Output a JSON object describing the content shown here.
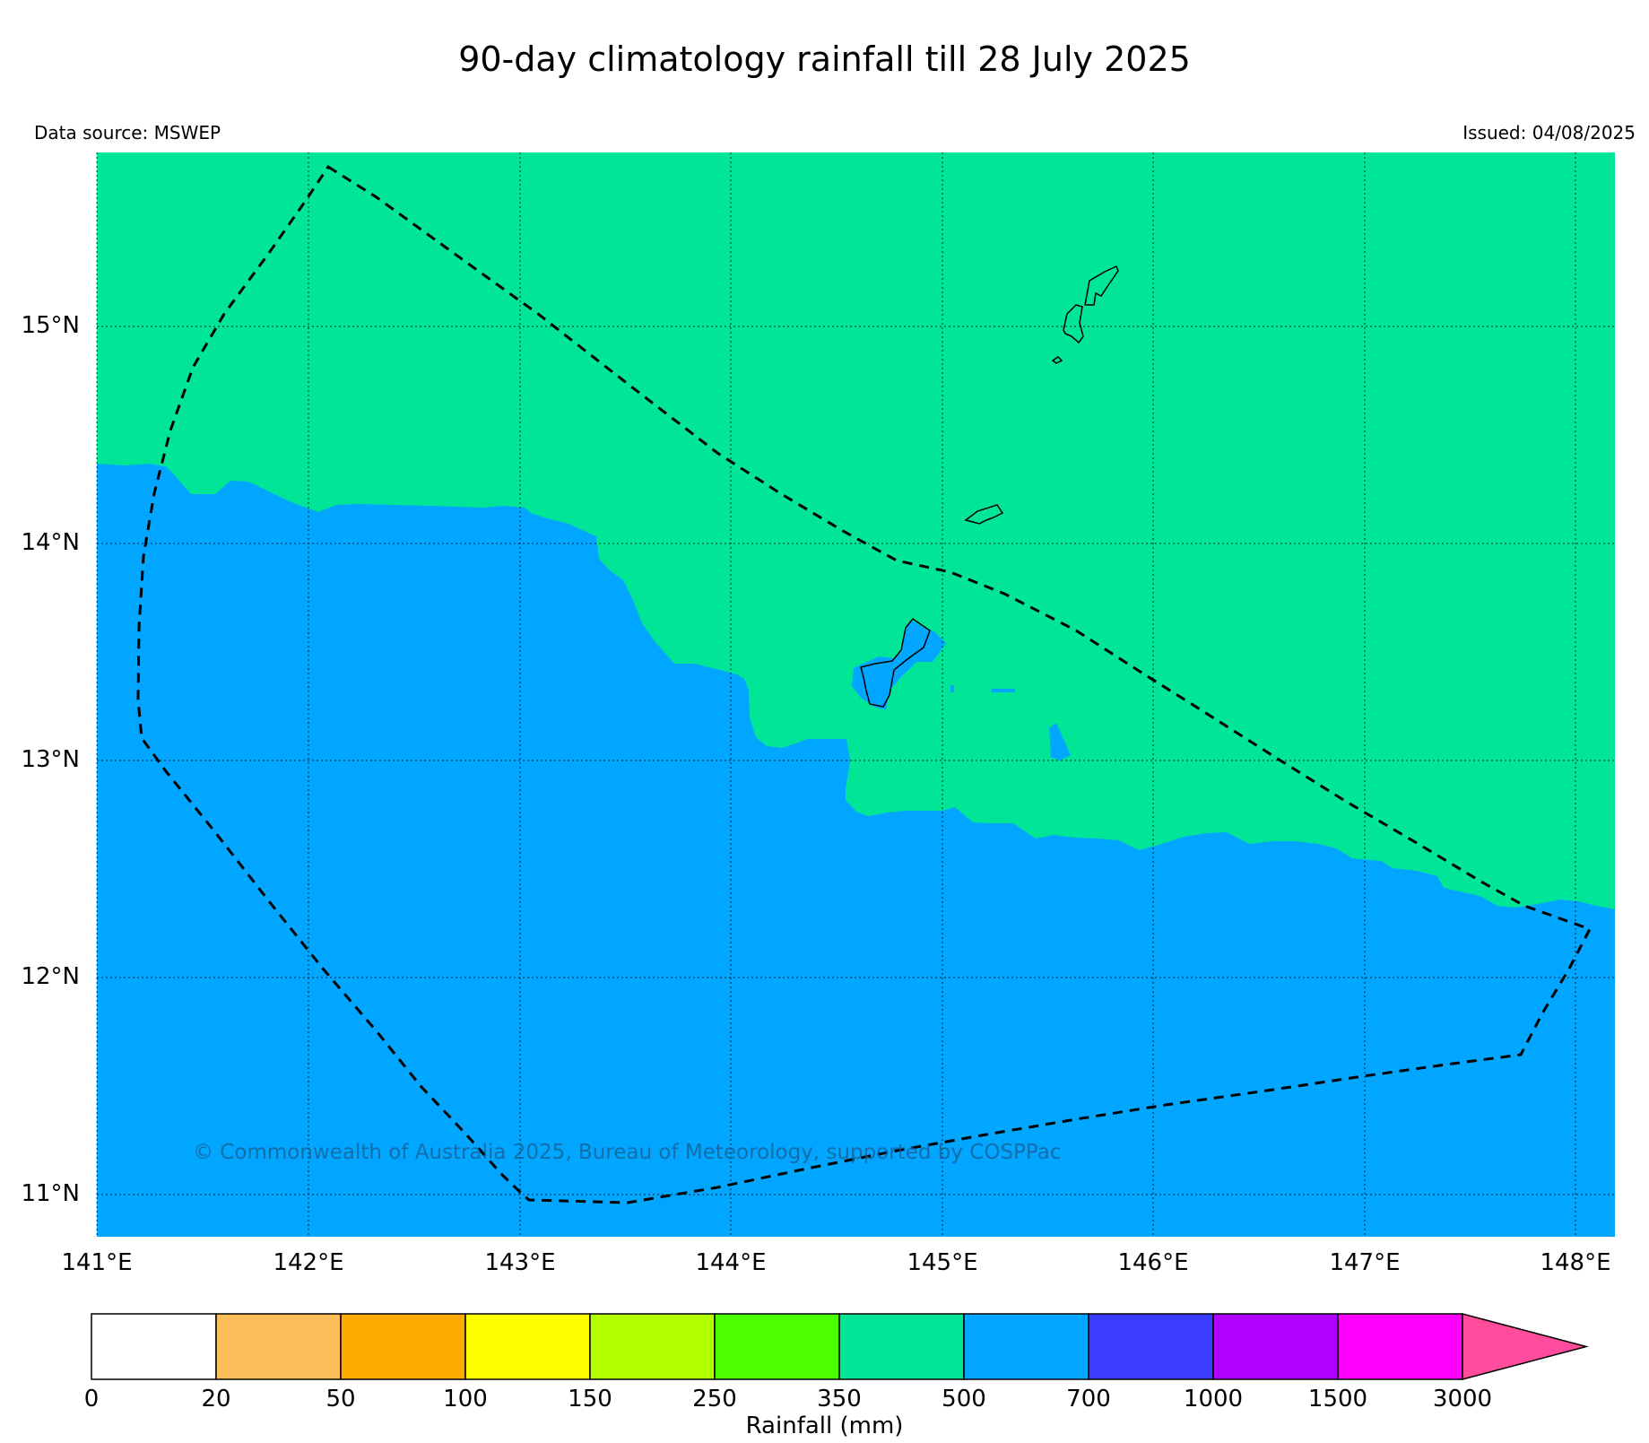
{
  "title": "90-day climatology rainfall till 28 July 2025",
  "data_source": "Data source: MSWEP",
  "issued": "Issued: 04/08/2025",
  "copyright": "© Commonwealth of Australia 2025, Bureau of Meteorology, supported by COSPPac",
  "latitudes": [
    "15°N",
    "14°N",
    "13°N",
    "12°N",
    "11°N"
  ],
  "longitudes": [
    "141°E",
    "142°E",
    "143°E",
    "144°E",
    "145°E",
    "146°E",
    "147°E",
    "148°E"
  ],
  "colorbar": {
    "label": "Rainfall (mm)",
    "ticks": [
      "0",
      "20",
      "50",
      "100",
      "150",
      "250",
      "350",
      "500",
      "700",
      "1000",
      "1500",
      "3000"
    ],
    "colors": [
      "#ffffff",
      "#fdbe5a",
      "#fdab00",
      "#ffff00",
      "#b2ff00",
      "#4cff00",
      "#00e696",
      "#00a6ff",
      "#3c3cff",
      "#b000ff",
      "#ff00ff",
      "#ff4c9c"
    ]
  },
  "regions": {
    "north_fill": "#00e696",
    "south_fill": "#00a6ff"
  }
}
